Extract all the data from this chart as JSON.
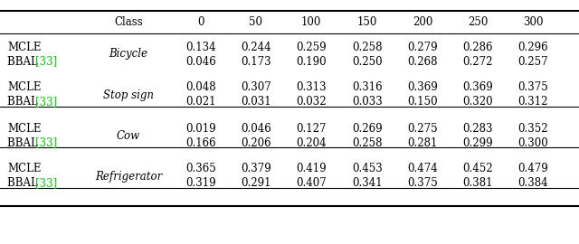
{
  "col_headers": [
    "Class",
    "0",
    "50",
    "100",
    "150",
    "200",
    "250",
    "300"
  ],
  "groups": [
    {
      "class_name": "Bicycle",
      "row1_values": [
        "0.134",
        "0.244",
        "0.259",
        "0.258",
        "0.279",
        "0.286",
        "0.296"
      ],
      "row2_values": [
        "0.046",
        "0.173",
        "0.190",
        "0.250",
        "0.268",
        "0.272",
        "0.257"
      ]
    },
    {
      "class_name": "Stop sign",
      "row1_values": [
        "0.048",
        "0.307",
        "0.313",
        "0.316",
        "0.369",
        "0.369",
        "0.375"
      ],
      "row2_values": [
        "0.021",
        "0.031",
        "0.032",
        "0.033",
        "0.150",
        "0.320",
        "0.312"
      ]
    },
    {
      "class_name": "Cow",
      "row1_values": [
        "0.019",
        "0.046",
        "0.127",
        "0.269",
        "0.275",
        "0.283",
        "0.352"
      ],
      "row2_values": [
        "0.166",
        "0.206",
        "0.204",
        "0.258",
        "0.281",
        "0.299",
        "0.300"
      ]
    },
    {
      "class_name": "Refrigerator",
      "row1_values": [
        "0.365",
        "0.379",
        "0.419",
        "0.453",
        "0.474",
        "0.452",
        "0.479"
      ],
      "row2_values": [
        "0.319",
        "0.291",
        "0.407",
        "0.341",
        "0.375",
        "0.381",
        "0.384"
      ]
    }
  ],
  "bbal_color": "#00cc00",
  "method1": "MCLE",
  "method2_prefix": "BBAL ",
  "method2_ref": "[33]",
  "fontsize": 8.5,
  "header_fontsize": 8.5
}
